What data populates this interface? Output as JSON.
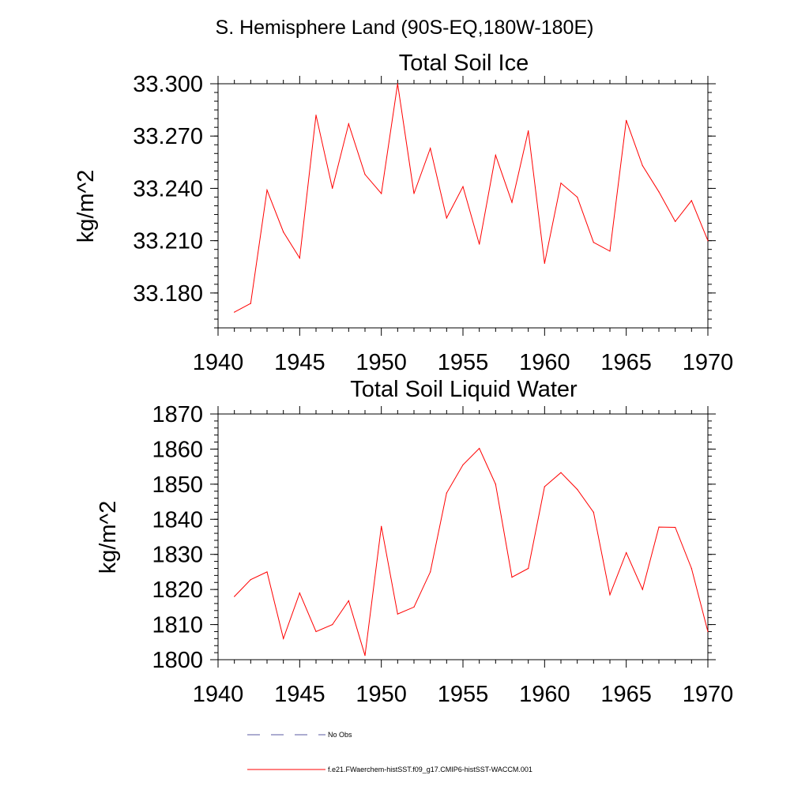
{
  "figure": {
    "title": "S. Hemisphere Land (90S-EQ,180W-180E)"
  },
  "colors": {
    "series": "#ff0000",
    "obs": "#5a5aa0",
    "axis": "#000000"
  },
  "chart_data": [
    {
      "type": "line",
      "title": "Total Soil Ice",
      "xlabel": "",
      "ylabel": "kg/m^2",
      "xlim": [
        1940,
        1970
      ],
      "ylim": [
        33.16,
        33.3
      ],
      "xticks": [
        1940,
        1945,
        1950,
        1955,
        1960,
        1965,
        1970
      ],
      "xtick_labels": [
        "1940",
        "1945",
        "1950",
        "1955",
        "1960",
        "1965",
        "1970"
      ],
      "yticks": [
        33.18,
        33.21,
        33.24,
        33.27,
        33.3
      ],
      "ytick_labels": [
        "33.180",
        "33.210",
        "33.240",
        "33.270",
        "33.300"
      ],
      "grid": false,
      "series": [
        {
          "name": "f.e21.FWaerchem-histSST.f09_g17.CMIP6-histSST-WACCM.001",
          "x": [
            1941,
            1942,
            1943,
            1944,
            1945,
            1946,
            1947,
            1948,
            1949,
            1950,
            1951,
            1952,
            1953,
            1954,
            1955,
            1956,
            1957,
            1958,
            1959,
            1960,
            1961,
            1962,
            1963,
            1964,
            1965,
            1966,
            1967,
            1968,
            1969,
            1970
          ],
          "values": [
            33.169,
            33.174,
            33.239,
            33.215,
            33.2,
            33.282,
            33.24,
            33.277,
            33.248,
            33.237,
            33.3,
            33.237,
            33.263,
            33.223,
            33.241,
            33.208,
            33.259,
            33.232,
            33.273,
            33.197,
            33.243,
            33.235,
            33.209,
            33.204,
            33.279,
            33.253,
            33.238,
            33.221,
            33.233,
            33.21
          ]
        }
      ]
    },
    {
      "type": "line",
      "title": "Total Soil Liquid Water",
      "xlabel": "",
      "ylabel": "kg/m^2",
      "xlim": [
        1940,
        1970
      ],
      "ylim": [
        1800,
        1870
      ],
      "xticks": [
        1940,
        1945,
        1950,
        1955,
        1960,
        1965,
        1970
      ],
      "xtick_labels": [
        "1940",
        "1945",
        "1950",
        "1955",
        "1960",
        "1965",
        "1970"
      ],
      "yticks": [
        1800,
        1810,
        1820,
        1830,
        1840,
        1850,
        1860,
        1870
      ],
      "ytick_labels": [
        "1800",
        "1810",
        "1820",
        "1830",
        "1840",
        "1850",
        "1860",
        "1870"
      ],
      "grid": false,
      "series": [
        {
          "name": "f.e21.FWaerchem-histSST.f09_g17.CMIP6-histSST-WACCM.001",
          "x": [
            1941,
            1942,
            1943,
            1944,
            1945,
            1946,
            1947,
            1948,
            1949,
            1950,
            1951,
            1952,
            1953,
            1954,
            1955,
            1956,
            1957,
            1958,
            1959,
            1960,
            1961,
            1962,
            1963,
            1964,
            1965,
            1966,
            1967,
            1968,
            1969,
            1970
          ],
          "values": [
            1818,
            1822.8,
            1825,
            1806,
            1819,
            1808,
            1810,
            1816.8,
            1801.2,
            1838,
            1813,
            1815,
            1825,
            1847.5,
            1855.5,
            1860.2,
            1850,
            1823.5,
            1826,
            1849.3,
            1853.3,
            1848.5,
            1842,
            1818.5,
            1830.5,
            1820,
            1837.8,
            1837.7,
            1826,
            1808
          ]
        }
      ]
    }
  ],
  "legend": {
    "placement": "bottom-center",
    "obs_label": "No Obs",
    "model_label": "f.e21.FWaerchem-histSST.f09_g17.CMIP6-histSST-WACCM.001"
  }
}
